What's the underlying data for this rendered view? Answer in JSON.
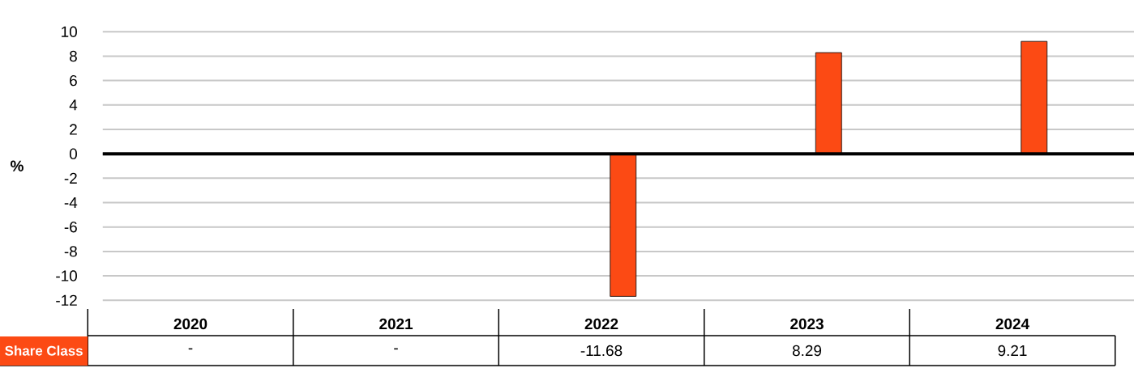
{
  "chart_data": {
    "type": "bar",
    "ylabel": "%",
    "categories": [
      "2020",
      "2021",
      "2022",
      "2023",
      "2024"
    ],
    "series": [
      {
        "name": "Share Class",
        "color": "#fc4a14",
        "values": [
          null,
          null,
          -11.68,
          8.29,
          9.21
        ],
        "value_labels": [
          "-",
          "-",
          "-11.68",
          "8.29",
          "9.21"
        ]
      }
    ],
    "ylim": [
      -12,
      10
    ],
    "yticks": [
      -12,
      -10,
      -8,
      -6,
      -4,
      -2,
      0,
      2,
      4,
      6,
      8,
      10
    ],
    "grid": "y",
    "ref_lines": [
      {
        "axis": "y",
        "value": 0,
        "color": "#000000"
      }
    ]
  }
}
